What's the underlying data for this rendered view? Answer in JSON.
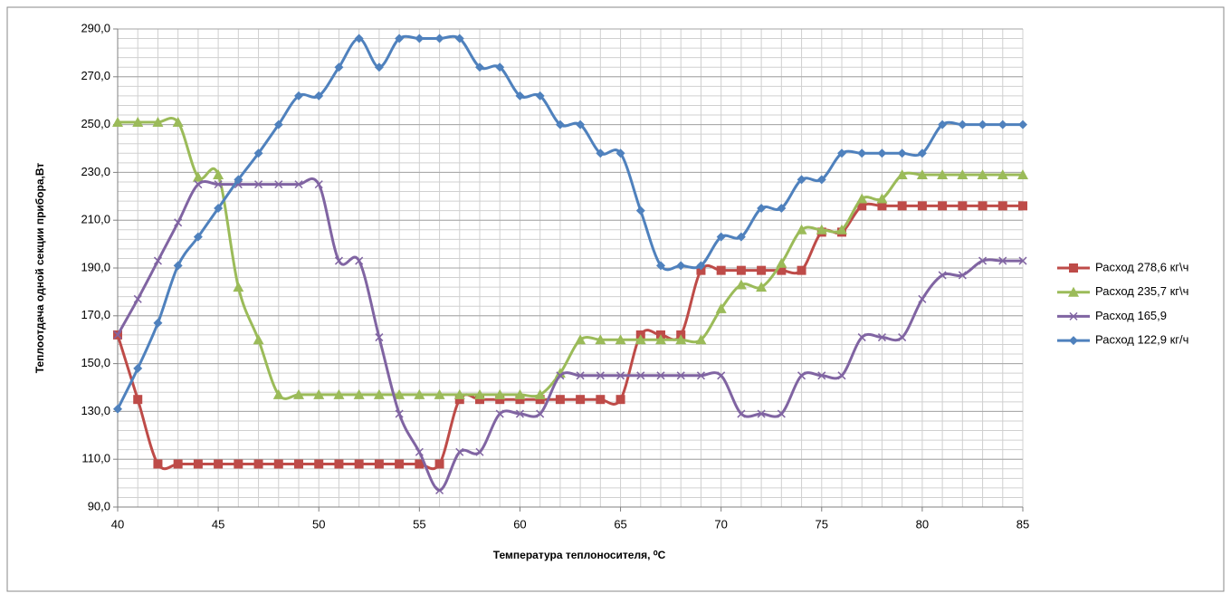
{
  "chart_data": {
    "type": "line",
    "ylabel": "Теплоотдача одной секции прибора,Вт",
    "xlabel": "Температура теплоносителя, ⁰C",
    "x": [
      40,
      41,
      42,
      43,
      44,
      45,
      46,
      47,
      48,
      49,
      50,
      51,
      52,
      53,
      54,
      55,
      56,
      57,
      58,
      59,
      60,
      61,
      62,
      63,
      64,
      65,
      66,
      67,
      68,
      69,
      70,
      71,
      72,
      73,
      74,
      75,
      76,
      77,
      78,
      79,
      80,
      81,
      82,
      83,
      84,
      85
    ],
    "xlim": [
      40,
      85
    ],
    "xticks": [
      40,
      45,
      50,
      55,
      60,
      65,
      70,
      75,
      80,
      85
    ],
    "ylim": [
      90,
      290
    ],
    "yticks": [
      {
        "value": 90,
        "label": "90,0"
      },
      {
        "value": 110,
        "label": "110,0"
      },
      {
        "value": 130,
        "label": "130,0"
      },
      {
        "value": 150,
        "label": "150,0"
      },
      {
        "value": 170,
        "label": "170,0"
      },
      {
        "value": 190,
        "label": "190,0"
      },
      {
        "value": 210,
        "label": "210,0"
      },
      {
        "value": 230,
        "label": "230,0"
      },
      {
        "value": 250,
        "label": "250,0"
      },
      {
        "value": 270,
        "label": "270,0"
      },
      {
        "value": 290,
        "label": "290,0"
      }
    ],
    "grid": true,
    "yminor_step": 4,
    "smooth": true,
    "legend": "right",
    "series": [
      {
        "name": "Расход 278,6 кг\\ч",
        "color": "#be4b48",
        "marker": "square",
        "values": [
          162,
          135,
          108,
          108,
          108,
          108,
          108,
          108,
          108,
          108,
          108,
          108,
          108,
          108,
          108,
          108,
          108,
          135,
          135,
          135,
          135,
          135,
          135,
          135,
          135,
          135,
          162,
          162,
          162,
          189,
          189,
          189,
          189,
          189,
          189,
          205,
          205,
          216,
          216,
          216,
          216,
          216,
          216,
          216,
          216,
          216
        ]
      },
      {
        "name": "Расход 235,7 кг\\ч",
        "color": "#9bbb59",
        "marker": "triangle",
        "values": [
          251,
          251,
          251,
          251,
          228,
          229,
          182,
          160,
          137,
          137,
          137,
          137,
          137,
          137,
          137,
          137,
          137,
          137,
          137,
          137,
          137,
          137,
          146,
          160,
          160,
          160,
          160,
          160,
          160,
          160,
          173,
          183,
          182,
          192,
          206,
          206,
          206,
          219,
          219,
          229,
          229,
          229,
          229,
          229,
          229,
          229
        ]
      },
      {
        "name": "Расход 165,9",
        "color": "#8064a2",
        "marker": "x",
        "values": [
          162,
          177,
          193,
          209,
          225,
          225,
          225,
          225,
          225,
          225,
          225,
          193,
          193,
          161,
          129,
          113,
          97,
          113,
          113,
          129,
          129,
          129,
          145,
          145,
          145,
          145,
          145,
          145,
          145,
          145,
          145,
          129,
          129,
          129,
          145,
          145,
          145,
          161,
          161,
          161,
          177,
          187,
          187,
          193,
          193,
          193
        ]
      },
      {
        "name": "Расход 122,9 кг/ч",
        "color": "#4f81bd",
        "marker": "diamond",
        "values": [
          131,
          148,
          167,
          191,
          203,
          215,
          227,
          238,
          250,
          262,
          262,
          274,
          286,
          274,
          286,
          286,
          286,
          286,
          274,
          274,
          262,
          262,
          250,
          250,
          238,
          238,
          214,
          191,
          191,
          191,
          203,
          203,
          215,
          215,
          227,
          227,
          238,
          238,
          238,
          238,
          238,
          250,
          250,
          250,
          250,
          250
        ]
      }
    ]
  }
}
